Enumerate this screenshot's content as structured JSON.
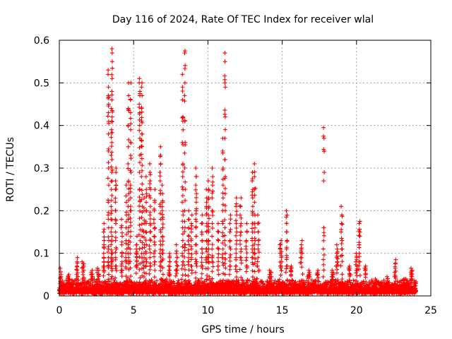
{
  "chart_data": {
    "type": "scatter",
    "title": "Day 116 of 2024, Rate Of TEC Index for receiver wlal",
    "xlabel": "GPS time / hours",
    "ylabel": "ROTI / TECUs",
    "xlim": [
      0,
      25
    ],
    "ylim": [
      0,
      0.6
    ],
    "xticks": [
      0,
      5,
      10,
      15,
      20,
      25
    ],
    "xtick_labels": [
      "0",
      "5",
      "10",
      "15",
      "20",
      "25"
    ],
    "yticks": [
      0,
      0.1,
      0.2,
      0.3,
      0.4,
      0.5,
      0.6
    ],
    "ytick_labels": [
      "0",
      "0.1",
      "0.2",
      "0.3",
      "0.4",
      "0.5",
      "0.6"
    ],
    "grid": true,
    "marker": "+",
    "color": "#ff0000",
    "background_band": {
      "x_range": [
        0,
        24
      ],
      "y_min": 0.005,
      "y_max": 0.035,
      "density": 6
    },
    "series": [
      {
        "name": "ROTI",
        "spikes": [
          {
            "x": 0.1,
            "w": 0.08,
            "vals": [
              0.065,
              0.05,
              0.045,
              0.04,
              0.035,
              0.03
            ]
          },
          {
            "x": 0.6,
            "w": 0.1,
            "vals": [
              0.05,
              0.045,
              0.04,
              0.035,
              0.03
            ]
          },
          {
            "x": 1.2,
            "w": 0.1,
            "vals": [
              0.09,
              0.08,
              0.07,
              0.06,
              0.05,
              0.04
            ]
          },
          {
            "x": 1.6,
            "w": 0.15,
            "vals": [
              0.08,
              0.075,
              0.07,
              0.06,
              0.05,
              0.04
            ]
          },
          {
            "x": 2.2,
            "w": 0.12,
            "vals": [
              0.06,
              0.055,
              0.05,
              0.045,
              0.04
            ]
          },
          {
            "x": 2.6,
            "w": 0.12,
            "vals": [
              0.065,
              0.06,
              0.055,
              0.05,
              0.04
            ]
          },
          {
            "x": 3.0,
            "w": 0.06,
            "vals": [
              0.17,
              0.15,
              0.13,
              0.12,
              0.1,
              0.09,
              0.08,
              0.07,
              0.06
            ]
          },
          {
            "x": 3.3,
            "w": 0.06,
            "vals": [
              0.53,
              0.52,
              0.49,
              0.47,
              0.45,
              0.43,
              0.38,
              0.34,
              0.3,
              0.26,
              0.22,
              0.19,
              0.16,
              0.13,
              0.11,
              0.09,
              0.08,
              0.07
            ]
          },
          {
            "x": 3.5,
            "w": 0.05,
            "vals": [
              0.44,
              0.41,
              0.39,
              0.33,
              0.29,
              0.25,
              0.21,
              0.18,
              0.15,
              0.12,
              0.1,
              0.08
            ]
          },
          {
            "x": 3.55,
            "w": 0.05,
            "vals": [
              0.58,
              0.57,
              0.55,
              0.51,
              0.48,
              0.46,
              0.42,
              0.36,
              0.32,
              0.27,
              0.2,
              0.14,
              0.1
            ]
          },
          {
            "x": 3.8,
            "w": 0.06,
            "vals": [
              0.3,
              0.29,
              0.27,
              0.25,
              0.22,
              0.2,
              0.18,
              0.15,
              0.13,
              0.11,
              0.09,
              0.07
            ]
          },
          {
            "x": 4.2,
            "w": 0.08,
            "vals": [
              0.18,
              0.16,
              0.14,
              0.12,
              0.1,
              0.08,
              0.07,
              0.06
            ]
          },
          {
            "x": 4.5,
            "w": 0.06,
            "vals": [
              0.26,
              0.22,
              0.19,
              0.16,
              0.13,
              0.11,
              0.09,
              0.08
            ]
          },
          {
            "x": 4.65,
            "w": 0.05,
            "vals": [
              0.5,
              0.47,
              0.44,
              0.4,
              0.35,
              0.31,
              0.27,
              0.24,
              0.21,
              0.18,
              0.15,
              0.12,
              0.1,
              0.08
            ]
          },
          {
            "x": 4.8,
            "w": 0.05,
            "vals": [
              0.5,
              0.46,
              0.43,
              0.39,
              0.36,
              0.33,
              0.29,
              0.26,
              0.23,
              0.2
            ]
          },
          {
            "x": 5.2,
            "w": 0.06,
            "vals": [
              0.14,
              0.12,
              0.11,
              0.1,
              0.09,
              0.08,
              0.07
            ]
          },
          {
            "x": 5.4,
            "w": 0.05,
            "vals": [
              0.51,
              0.5,
              0.48,
              0.47,
              0.45,
              0.43,
              0.37,
              0.33,
              0.29,
              0.25
            ]
          },
          {
            "x": 5.55,
            "w": 0.05,
            "vals": [
              0.5,
              0.49,
              0.47,
              0.44,
              0.41,
              0.38
            ]
          },
          {
            "x": 5.7,
            "w": 0.06,
            "vals": [
              0.23,
              0.2,
              0.17,
              0.15,
              0.12,
              0.1,
              0.08
            ]
          },
          {
            "x": 5.85,
            "w": 0.06,
            "vals": [
              0.28,
              0.25,
              0.22,
              0.2,
              0.17,
              0.15,
              0.12,
              0.1,
              0.08
            ]
          },
          {
            "x": 6.1,
            "w": 0.08,
            "vals": [
              0.31,
              0.29,
              0.27,
              0.25,
              0.23,
              0.21,
              0.19,
              0.17,
              0.15,
              0.13,
              0.11,
              0.09,
              0.07
            ]
          },
          {
            "x": 6.4,
            "w": 0.08,
            "vals": [
              0.25,
              0.22,
              0.2,
              0.18,
              0.16,
              0.14,
              0.12,
              0.1,
              0.08
            ]
          },
          {
            "x": 6.8,
            "w": 0.06,
            "vals": [
              0.35,
              0.33,
              0.31,
              0.29,
              0.27,
              0.24,
              0.21,
              0.18,
              0.15,
              0.12,
              0.1,
              0.08
            ]
          },
          {
            "x": 6.95,
            "w": 0.06,
            "vals": [
              0.26,
              0.24,
              0.22,
              0.2,
              0.18,
              0.16,
              0.14,
              0.12,
              0.1
            ]
          },
          {
            "x": 7.4,
            "w": 0.1,
            "vals": [
              0.1,
              0.09,
              0.08,
              0.07,
              0.06,
              0.05
            ]
          },
          {
            "x": 7.9,
            "w": 0.1,
            "vals": [
              0.12,
              0.1,
              0.09,
              0.08,
              0.07,
              0.06
            ]
          },
          {
            "x": 8.3,
            "w": 0.06,
            "vals": [
              0.52,
              0.49,
              0.46,
              0.42,
              0.41,
              0.36,
              0.31,
              0.28,
              0.25,
              0.22,
              0.19,
              0.16,
              0.13,
              0.1,
              0.08
            ]
          },
          {
            "x": 8.45,
            "w": 0.05,
            "vals": [
              0.575,
              0.57,
              0.5,
              0.47,
              0.41,
              0.36,
              0.3,
              0.25,
              0.2,
              0.16,
              0.12
            ]
          },
          {
            "x": 8.7,
            "w": 0.06,
            "vals": [
              0.2,
              0.18,
              0.16,
              0.14,
              0.12,
              0.1,
              0.08
            ]
          },
          {
            "x": 8.9,
            "w": 0.06,
            "vals": [
              0.19,
              0.17,
              0.15,
              0.13,
              0.11,
              0.09,
              0.07
            ]
          },
          {
            "x": 9.2,
            "w": 0.06,
            "vals": [
              0.3,
              0.28,
              0.26,
              0.24,
              0.22,
              0.2,
              0.18,
              0.16,
              0.14,
              0.12,
              0.1,
              0.08
            ]
          },
          {
            "x": 9.6,
            "w": 0.06,
            "vals": [
              0.19,
              0.17,
              0.15,
              0.13,
              0.11,
              0.09,
              0.07
            ]
          },
          {
            "x": 9.9,
            "w": 0.06,
            "vals": [
              0.25,
              0.23,
              0.21,
              0.19,
              0.17,
              0.15,
              0.13,
              0.11,
              0.09
            ]
          },
          {
            "x": 10.05,
            "w": 0.06,
            "vals": [
              0.27,
              0.25,
              0.23,
              0.21,
              0.19,
              0.17,
              0.15,
              0.13,
              0.11,
              0.09
            ]
          },
          {
            "x": 10.3,
            "w": 0.06,
            "vals": [
              0.3,
              0.28,
              0.26,
              0.23,
              0.2,
              0.17,
              0.14,
              0.11,
              0.09
            ]
          },
          {
            "x": 10.7,
            "w": 0.08,
            "vals": [
              0.17,
              0.15,
              0.13,
              0.11,
              0.09,
              0.07
            ]
          },
          {
            "x": 11.0,
            "w": 0.05,
            "vals": [
              0.37,
              0.34,
              0.3,
              0.26,
              0.23,
              0.2,
              0.17,
              0.14,
              0.11,
              0.09
            ]
          },
          {
            "x": 11.15,
            "w": 0.05,
            "vals": [
              0.57,
              0.55,
              0.5,
              0.49,
              0.42,
              0.37,
              0.32,
              0.28,
              0.24,
              0.2,
              0.16,
              0.13,
              0.1
            ]
          },
          {
            "x": 11.5,
            "w": 0.07,
            "vals": [
              0.19,
              0.17,
              0.15,
              0.13,
              0.11,
              0.09,
              0.07
            ]
          },
          {
            "x": 11.9,
            "w": 0.08,
            "vals": [
              0.23,
              0.21,
              0.19,
              0.17,
              0.15,
              0.13,
              0.11,
              0.09,
              0.07
            ]
          },
          {
            "x": 12.2,
            "w": 0.08,
            "vals": [
              0.23,
              0.21,
              0.19,
              0.17,
              0.15,
              0.13,
              0.11,
              0.09
            ]
          },
          {
            "x": 12.6,
            "w": 0.1,
            "vals": [
              0.17,
              0.15,
              0.13,
              0.11,
              0.09,
              0.07
            ]
          },
          {
            "x": 13.0,
            "w": 0.06,
            "vals": [
              0.29,
              0.27,
              0.25,
              0.23,
              0.21,
              0.19,
              0.17,
              0.15,
              0.13,
              0.11,
              0.09
            ]
          },
          {
            "x": 13.15,
            "w": 0.06,
            "vals": [
              0.31,
              0.28,
              0.25,
              0.22,
              0.19,
              0.17,
              0.15,
              0.13,
              0.11
            ]
          },
          {
            "x": 13.4,
            "w": 0.12,
            "vals": [
              0.19,
              0.17,
              0.15,
              0.13,
              0.11,
              0.09,
              0.07
            ]
          },
          {
            "x": 14.2,
            "w": 0.12,
            "vals": [
              0.06,
              0.055,
              0.05,
              0.045
            ]
          },
          {
            "x": 14.9,
            "w": 0.12,
            "vals": [
              0.13,
              0.12,
              0.11,
              0.1,
              0.09,
              0.08,
              0.07
            ]
          },
          {
            "x": 15.3,
            "w": 0.07,
            "vals": [
              0.2,
              0.19,
              0.17,
              0.15,
              0.13,
              0.11,
              0.09,
              0.07
            ]
          },
          {
            "x": 15.6,
            "w": 0.1,
            "vals": [
              0.07,
              0.065,
              0.06,
              0.05
            ]
          },
          {
            "x": 16.3,
            "w": 0.12,
            "vals": [
              0.13,
              0.12,
              0.11,
              0.1,
              0.09
            ]
          },
          {
            "x": 16.8,
            "w": 0.12,
            "vals": [
              0.06,
              0.055,
              0.05,
              0.045
            ]
          },
          {
            "x": 17.4,
            "w": 0.12,
            "vals": [
              0.06,
              0.055,
              0.05
            ]
          },
          {
            "x": 17.8,
            "w": 0.06,
            "vals": [
              0.395,
              0.375,
              0.37,
              0.29,
              0.16
            ]
          },
          {
            "x": 18.4,
            "w": 0.1,
            "vals": [
              0.06,
              0.055,
              0.05,
              0.045
            ]
          },
          {
            "x": 18.7,
            "w": 0.1,
            "vals": [
              0.12,
              0.11,
              0.1,
              0.09,
              0.08,
              0.07
            ]
          },
          {
            "x": 19.0,
            "w": 0.08,
            "vals": [
              0.21,
              0.19,
              0.17,
              0.15,
              0.13,
              0.11
            ]
          },
          {
            "x": 19.5,
            "w": 0.12,
            "vals": [
              0.07,
              0.065,
              0.06,
              0.05
            ]
          },
          {
            "x": 20.0,
            "w": 0.1,
            "vals": [
              0.1,
              0.09,
              0.08,
              0.07,
              0.06
            ]
          },
          {
            "x": 20.2,
            "w": 0.07,
            "vals": [
              0.175,
              0.17,
              0.15,
              0.14,
              0.12,
              0.1,
              0.08
            ]
          },
          {
            "x": 20.6,
            "w": 0.1,
            "vals": [
              0.07,
              0.065,
              0.06,
              0.05
            ]
          },
          {
            "x": 21.3,
            "w": 0.15,
            "vals": [
              0.04,
              0.035,
              0.03
            ]
          },
          {
            "x": 22.1,
            "w": 0.1,
            "vals": [
              0.045,
              0.04,
              0.035
            ]
          },
          {
            "x": 22.6,
            "w": 0.08,
            "vals": [
              0.085,
              0.075,
              0.065,
              0.055,
              0.045
            ]
          },
          {
            "x": 23.2,
            "w": 0.12,
            "vals": [
              0.04,
              0.035,
              0.03
            ]
          },
          {
            "x": 23.7,
            "w": 0.08,
            "vals": [
              0.065,
              0.06,
              0.055,
              0.05,
              0.045,
              0.04
            ]
          }
        ]
      }
    ]
  }
}
